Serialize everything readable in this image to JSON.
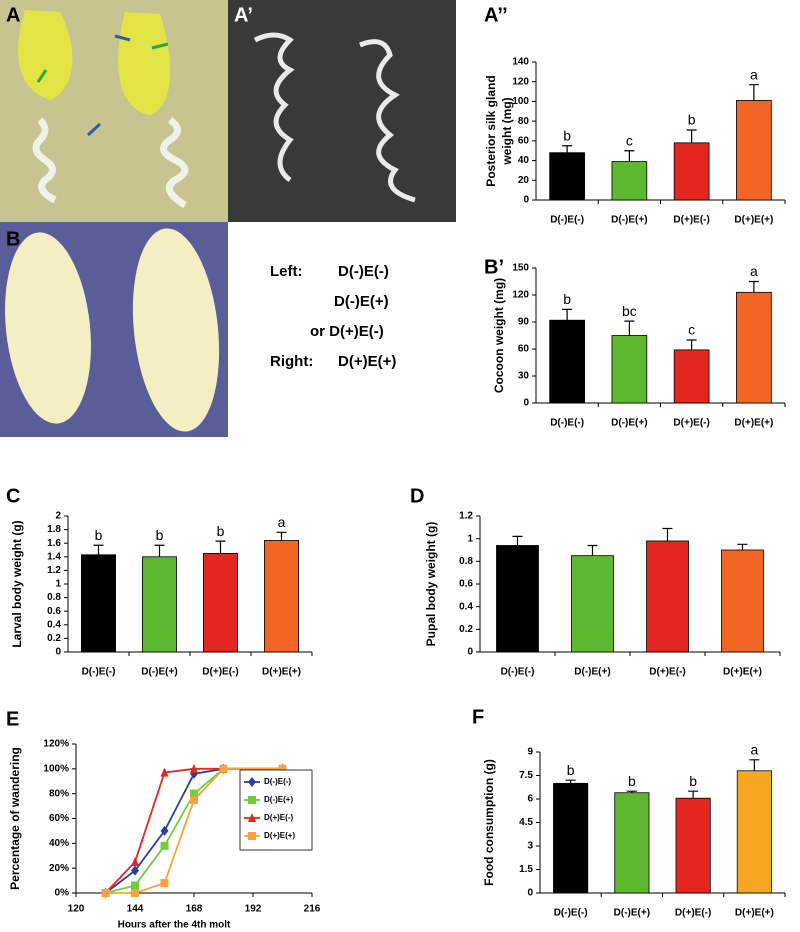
{
  "photos": {
    "panels": [
      "A",
      "A’",
      "B"
    ],
    "key": [
      {
        "label": "Left:",
        "value": "D(-)E(-)"
      },
      {
        "value": "D(-)E(+)"
      },
      {
        "value": "or D(+)E(-)"
      },
      {
        "label": "Right:",
        "value": "D(+)E(+)"
      }
    ]
  },
  "chart_data": [
    {
      "type": "bar",
      "panel": "A’’",
      "ylabel": [
        "Posterior silk gland",
        "weight (mg)"
      ],
      "categories": [
        "D(-)E(-)",
        "D(-)E(+)",
        "D(+)E(-)",
        "D(+)E(+)"
      ],
      "values": [
        48,
        39,
        58,
        101
      ],
      "errors": [
        7,
        11,
        13,
        16
      ],
      "letters": [
        "b",
        "c",
        "b",
        "a"
      ],
      "colors": [
        "#000000",
        "#5cb82e",
        "#e32620",
        "#f26522"
      ],
      "ylim": [
        0,
        140
      ],
      "yticks": [
        0,
        20,
        40,
        60,
        80,
        100,
        120,
        140
      ]
    },
    {
      "type": "bar",
      "panel": "B’",
      "ylabel": "Cocoon weight (mg)",
      "categories": [
        "D(-)E(-)",
        "D(-)E(+)",
        "D(+)E(-)",
        "D(+)E(+)"
      ],
      "values": [
        92,
        75,
        59,
        123
      ],
      "errors": [
        12,
        16,
        11,
        12
      ],
      "letters": [
        "b",
        "bc",
        "c",
        "a"
      ],
      "colors": [
        "#000000",
        "#5cb82e",
        "#e32620",
        "#f26522"
      ],
      "ylim": [
        0,
        150
      ],
      "yticks": [
        0,
        30,
        60,
        90,
        120,
        150
      ]
    },
    {
      "type": "bar",
      "panel": "C",
      "ylabel": "Larval body weight (g)",
      "categories": [
        "D(-)E(-)",
        "D(-)E(+)",
        "D(+)E(-)",
        "D(+)E(+)"
      ],
      "values": [
        1.43,
        1.4,
        1.45,
        1.64
      ],
      "errors": [
        0.14,
        0.17,
        0.18,
        0.12
      ],
      "letters": [
        "b",
        "b",
        "b",
        "a"
      ],
      "colors": [
        "#000000",
        "#5cb82e",
        "#e32620",
        "#f26522"
      ],
      "ylim": [
        0,
        2
      ],
      "yticks": [
        0,
        0.2,
        0.4,
        0.6,
        0.8,
        1,
        1.2,
        1.4,
        1.6,
        1.8,
        2
      ]
    },
    {
      "type": "bar",
      "panel": "D",
      "ylabel": "Pupal body weight (g)",
      "categories": [
        "D(-)E(-)",
        "D(-)E(+)",
        "D(+)E(-)",
        "D(+)E(+)"
      ],
      "values": [
        0.94,
        0.85,
        0.98,
        0.9
      ],
      "errors": [
        0.08,
        0.09,
        0.11,
        0.05
      ],
      "colors": [
        "#000000",
        "#5cb82e",
        "#e32620",
        "#f26522"
      ],
      "ylim": [
        0,
        1.2
      ],
      "yticks": [
        0,
        0.2,
        0.4,
        0.6,
        0.8,
        1,
        1.2
      ]
    },
    {
      "type": "line",
      "panel": "E",
      "ylabel": "Percentage of wandering",
      "xlabel": "Hours after the 4th molt",
      "x": [
        132,
        144,
        156,
        168,
        180,
        204
      ],
      "series": [
        {
          "name": "D(-)E(-)",
          "color": "#2e3d9c",
          "marker": "diamond",
          "values": [
            0,
            18,
            50,
            96,
            100,
            100
          ]
        },
        {
          "name": "D(-)E(+)",
          "color": "#6fce3a",
          "marker": "square",
          "values": [
            0,
            6,
            38,
            80,
            100,
            100
          ]
        },
        {
          "name": "D(+)E(-)",
          "color": "#e8251f",
          "marker": "triangle",
          "values": [
            0,
            25,
            97,
            100,
            100,
            100
          ]
        },
        {
          "name": "D(+)E(+)",
          "color": "#f7a23c",
          "marker": "square",
          "values": [
            0,
            0,
            8,
            75,
            100,
            100
          ]
        }
      ],
      "xlim": [
        120,
        216
      ],
      "xticks": [
        120,
        144,
        168,
        192,
        216
      ],
      "ylim": [
        0,
        120
      ],
      "yticks": [
        {
          "value": 0,
          "label": "0%"
        },
        {
          "value": 20,
          "label": "20%"
        },
        {
          "value": 40,
          "label": "40%"
        },
        {
          "value": 60,
          "label": "60%"
        },
        {
          "value": 80,
          "label": "80%"
        },
        {
          "value": 100,
          "label": "100%"
        },
        {
          "value": 120,
          "label": "120%"
        }
      ]
    },
    {
      "type": "bar",
      "panel": "F",
      "ylabel": "Food consumption (g)",
      "categories": [
        "D(-)E(-)",
        "D(-)E(+)",
        "D(+)E(-)",
        "D(+)E(+)"
      ],
      "values": [
        7,
        6.4,
        6.05,
        7.8
      ],
      "errors": [
        0.2,
        0.1,
        0.45,
        0.7
      ],
      "letters": [
        "b",
        "b",
        "b",
        "a"
      ],
      "colors": [
        "#000000",
        "#5cb82e",
        "#e32620",
        "#f5a623"
      ],
      "ylim": [
        0,
        9
      ],
      "yticks": [
        0,
        1.5,
        3,
        4.5,
        6,
        7.5,
        9
      ]
    }
  ]
}
